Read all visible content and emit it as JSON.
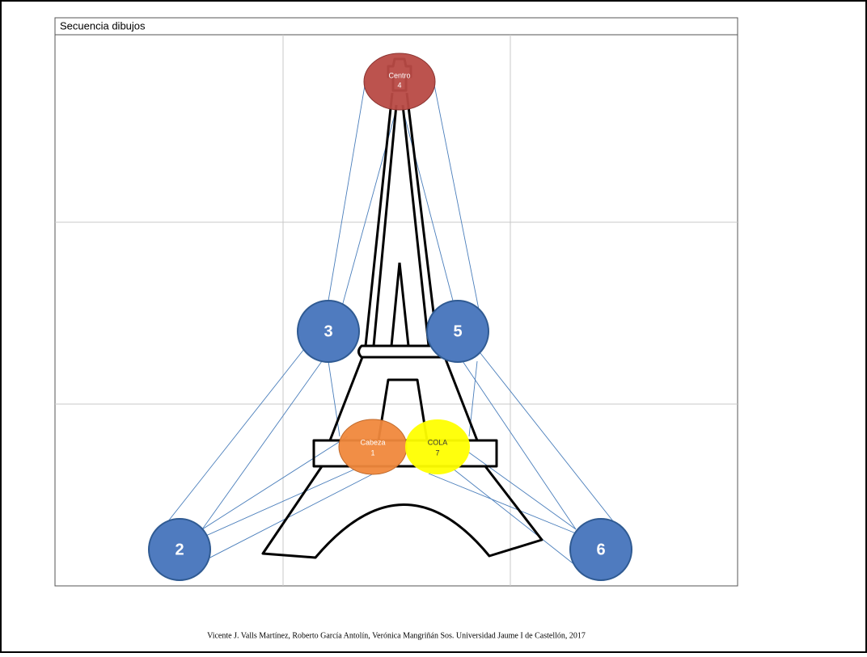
{
  "header": {
    "title": "Secuencia dibujos"
  },
  "nodes": [
    {
      "label": "Centro",
      "number": "4"
    },
    {
      "label": "Cabeza",
      "number": "1"
    },
    {
      "label": "COLA",
      "number": "7"
    },
    {
      "number": "2"
    },
    {
      "number": "3"
    },
    {
      "number": "5"
    },
    {
      "number": "6"
    }
  ],
  "footer": {
    "text": "Vicente J. Valls Martínez, Roberto García Antolín, Verónica Mangriñán Sos. Universidad Jaume I de Castellón, 2017"
  }
}
